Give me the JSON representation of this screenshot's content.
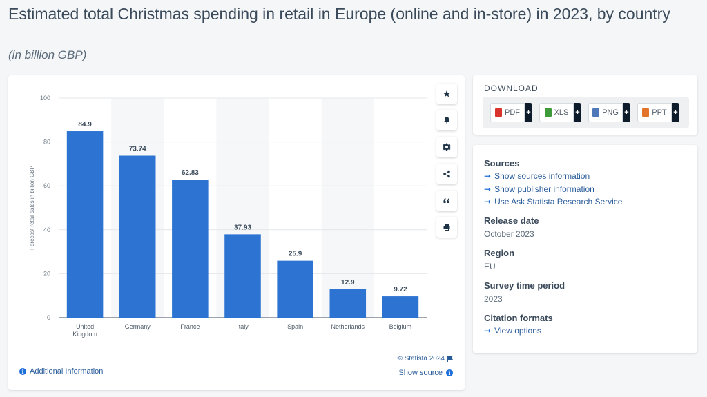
{
  "header": {
    "title": "Estimated total Christmas spending in retail in Europe (online and in-store) in 2023, by country",
    "subtitle": "(in billion GBP)"
  },
  "colors": {
    "bar": "#2c73d2",
    "accent": "#1e6fd9",
    "link": "#2a5c9a"
  },
  "chart_data": {
    "type": "bar",
    "categories": [
      "United Kingdom",
      "Germany",
      "France",
      "Italy",
      "Spain",
      "Netherlands",
      "Belgium"
    ],
    "category_lines": [
      [
        "United",
        "Kingdom"
      ],
      [
        "Germany"
      ],
      [
        "France"
      ],
      [
        "Italy"
      ],
      [
        "Spain"
      ],
      [
        "Netherlands"
      ],
      [
        "Belgium"
      ]
    ],
    "values": [
      84.9,
      73.74,
      62.83,
      37.93,
      25.9,
      12.9,
      9.72
    ],
    "value_labels": [
      "84.9",
      "73.74",
      "62.83",
      "37.93",
      "25.9",
      "12.9",
      "9.72"
    ],
    "ylabel": "Forecast retail sales in billion GBP",
    "xlabel": "",
    "ylim": [
      0,
      100
    ],
    "yticks": [
      0,
      20,
      40,
      60,
      80,
      100
    ],
    "grid": true,
    "legend": "none"
  },
  "chart_tools": [
    {
      "name": "star-icon"
    },
    {
      "name": "bell-icon"
    },
    {
      "name": "gear-icon"
    },
    {
      "name": "share-icon"
    },
    {
      "name": "quote-icon"
    },
    {
      "name": "print-icon"
    }
  ],
  "chart_footer": {
    "credit": "© Statista 2024",
    "additional_info": "Additional Information",
    "show_source": "Show source"
  },
  "download": {
    "title": "DOWNLOAD",
    "buttons": [
      {
        "label": "PDF",
        "color": "#d9342b"
      },
      {
        "label": "XLS",
        "color": "#3f9b3a"
      },
      {
        "label": "PNG",
        "color": "#4f79b8"
      },
      {
        "label": "PPT",
        "color": "#e3752b"
      }
    ],
    "plus": "+"
  },
  "info": {
    "sources_heading": "Sources",
    "sources_links": [
      "Show sources information",
      "Show publisher information",
      "Use Ask Statista Research Service"
    ],
    "release_heading": "Release date",
    "release_value": "October 2023",
    "region_heading": "Region",
    "region_value": "EU",
    "survey_heading": "Survey time period",
    "survey_value": "2023",
    "citation_heading": "Citation formats",
    "citation_link": "View options"
  }
}
